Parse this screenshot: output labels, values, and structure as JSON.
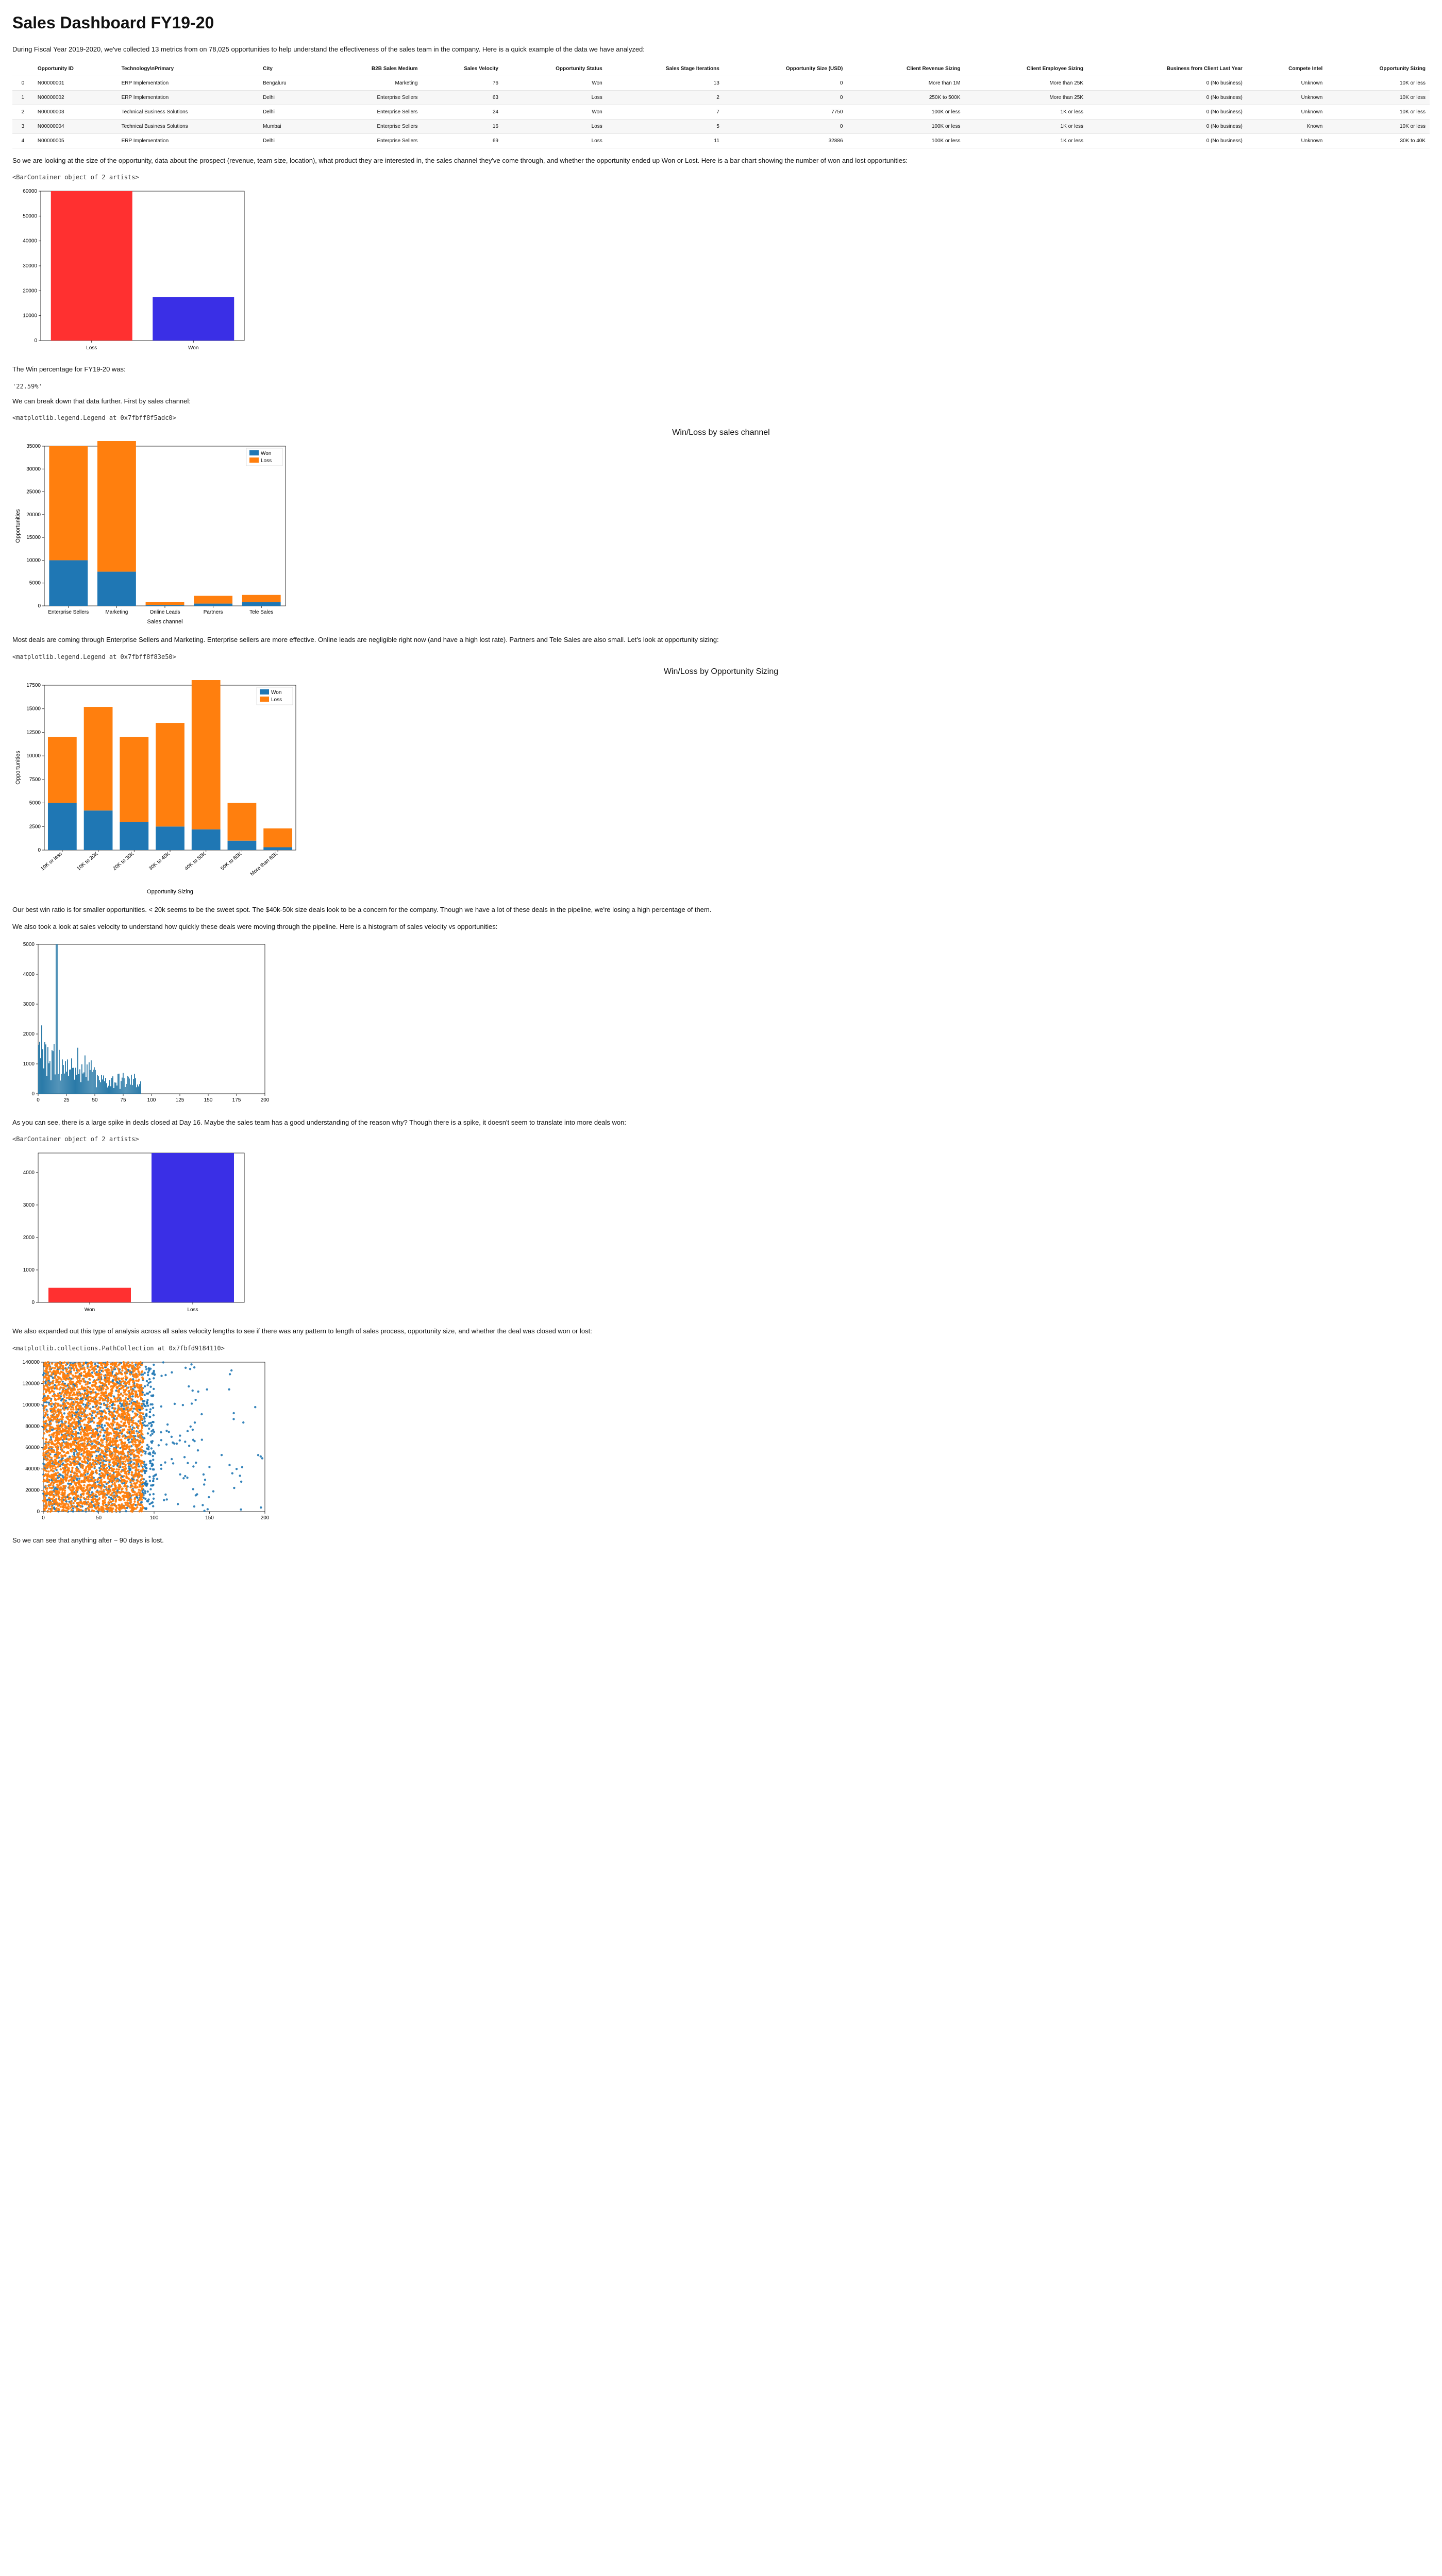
{
  "title": "Sales Dashboard FY19-20",
  "intro": "During Fiscal Year 2019-2020, we've collected 13 metrics from on 78,025 opportunities to help understand the effectiveness of the sales team in the company. Here is a quick example of the data we have analyzed:",
  "table": {
    "columns": [
      "",
      "Opportunity ID",
      "Technology\\nPrimary",
      "City",
      "B2B Sales Medium",
      "Sales Velocity",
      "Opportunity Status",
      "Sales Stage Iterations",
      "Opportunity Size (USD)",
      "Client Revenue Sizing",
      "Client Employee Sizing",
      "Business from Client Last Year",
      "Compete Intel",
      "Opportunity Sizing"
    ],
    "rows": [
      [
        "0",
        "N00000001",
        "ERP Implementation",
        "Bengaluru",
        "Marketing",
        "76",
        "Won",
        "13",
        "0",
        "More than 1M",
        "More than 25K",
        "0 (No business)",
        "Unknown",
        "10K or less"
      ],
      [
        "1",
        "N00000002",
        "ERP Implementation",
        "Delhi",
        "Enterprise Sellers",
        "63",
        "Loss",
        "2",
        "0",
        "250K to 500K",
        "More than 25K",
        "0 (No business)",
        "Unknown",
        "10K or less"
      ],
      [
        "2",
        "N00000003",
        "Technical Business Solutions",
        "Delhi",
        "Enterprise Sellers",
        "24",
        "Won",
        "7",
        "7750",
        "100K or less",
        "1K or less",
        "0 (No business)",
        "Unknown",
        "10K or less"
      ],
      [
        "3",
        "N00000004",
        "Technical Business Solutions",
        "Mumbai",
        "Enterprise Sellers",
        "16",
        "Loss",
        "5",
        "0",
        "100K or less",
        "1K or less",
        "0 (No business)",
        "Known",
        "10K or less"
      ],
      [
        "4",
        "N00000005",
        "ERP Implementation",
        "Delhi",
        "Enterprise Sellers",
        "69",
        "Loss",
        "11",
        "32886",
        "100K or less",
        "1K or less",
        "0 (No business)",
        "Unknown",
        "30K to 40K"
      ]
    ]
  },
  "para_after_table": "So we are looking at the size of the opportunity, data about the prospect (revenue, team size, location), what product they are interested in, the sales channel they've come through, and whether the opportunity ended up Won or Lost. Here is a bar chart showing the number of won and lost opportunities:",
  "chart1_repr": "<BarContainer object of 2 artists>",
  "chart1": {
    "type": "bar",
    "categories": [
      "Loss",
      "Won"
    ],
    "values": [
      60000,
      17500
    ],
    "colors": [
      "#ff3030",
      "#3a2fe6"
    ],
    "ylim": [
      0,
      60000
    ],
    "ytick_step": 10000,
    "border_color": "#000000",
    "bg": "#ffffff",
    "bar_width": 0.8
  },
  "win_pct_intro": "The Win percentage for FY19-20 was:",
  "win_pct": "'22.59%'",
  "breakdown_intro": "We can break down that data further. First by sales channel:",
  "chart2_repr": "<matplotlib.legend.Legend at 0x7fbff8f5adc0>",
  "chart2": {
    "type": "stacked-bar",
    "title": "Win/Loss by sales channel",
    "xlabel": "Sales channel",
    "ylabel": "Opportunities",
    "categories": [
      "Enterprise Sellers",
      "Marketing",
      "Online Leads",
      "Partners",
      "Tele Sales"
    ],
    "won": [
      10000,
      7500,
      200,
      500,
      800
    ],
    "loss": [
      25000,
      29000,
      700,
      1700,
      1600
    ],
    "colors": {
      "won": "#1f77b4",
      "loss": "#ff7f0e"
    },
    "ylim": [
      0,
      35000
    ],
    "ytick_step": 5000
  },
  "para_after_c2": "Most deals are coming through Enterprise Sellers and Marketing. Enterprise sellers are more effective. Online leads are negligible right now (and have a high lost rate). Partners and Tele Sales are also small. Let's look at opportunity sizing:",
  "chart3_repr": "<matplotlib.legend.Legend at 0x7fbff8f83e50>",
  "chart3": {
    "type": "stacked-bar",
    "title": "Win/Loss by Opportunity Sizing",
    "xlabel": "Opportunity Sizing",
    "ylabel": "Opportunities",
    "categories": [
      "10K or less",
      "10K to 20K",
      "20K to 30K",
      "30K to 40K",
      "40K to 50K",
      "50K to 60K",
      "More than 60K"
    ],
    "won": [
      5000,
      4200,
      3000,
      2500,
      2200,
      1000,
      300
    ],
    "loss": [
      7000,
      11000,
      9000,
      11000,
      16500,
      4000,
      2000
    ],
    "colors": {
      "won": "#1f77b4",
      "loss": "#ff7f0e"
    },
    "ylim": [
      0,
      17500
    ],
    "ytick_step": 2500,
    "rotate_x": 40
  },
  "para_after_c3a": "Our best win ratio is for smaller opportunities. < 20k seems to be the sweet spot. The $40k-50k size deals look to be a concern for the company. Though we have a lot of these deals in the pipeline, we're losing a high percentage of them.",
  "para_after_c3b": "We also took a look at sales velocity to understand how quickly these deals were moving through the pipeline. Here is a histogram of sales velocity vs opportunities:",
  "chart4": {
    "type": "histogram-dense",
    "xlim": [
      0,
      200
    ],
    "xtick_step": 25,
    "ylim": [
      0,
      5000
    ],
    "ytick_step": 1000,
    "bar_color": "#2a7aa8",
    "spike_x": 16,
    "spike_y": 5000,
    "dense_end": 90
  },
  "para_after_c4": "As you can see, there is a large spike in deals closed at Day 16. Maybe the sales team has a good understanding of the reason why? Though there is a spike, it doesn't seem to translate into more deals won:",
  "chart5_repr": "<BarContainer object of 2 artists>",
  "chart5": {
    "type": "bar",
    "categories": [
      "Won",
      "Loss"
    ],
    "values": [
      450,
      4600
    ],
    "colors": [
      "#ff3030",
      "#3a2fe6"
    ],
    "ylim": [
      0,
      4600
    ],
    "ytick_step": 1000,
    "bar_width": 0.8
  },
  "para_after_c5": "We also expanded out this type of analysis across all sales velocity lengths to see if there was any pattern to length of sales process, opportunity size, and whether the deal was closed won or lost:",
  "chart6_repr": "<matplotlib.collections.PathCollection at 0x7fbfd9184110>",
  "chart6": {
    "type": "scatter-dense",
    "xlim": [
      0,
      200
    ],
    "xtick_step": 50,
    "ylim": [
      0,
      140000
    ],
    "ytick_step": 20000,
    "orange": "#ff7f0e",
    "blue": "#1f77b4",
    "orange_x_max": 90,
    "blue_x_max": 200
  },
  "closing": "So we can see that anything after ~ 90 days is lost."
}
